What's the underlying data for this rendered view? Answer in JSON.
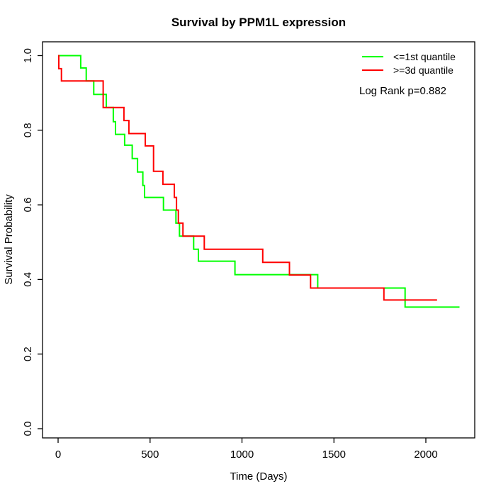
{
  "chart_data": {
    "type": "line",
    "step": true,
    "title": "Survival by PPM1L expression",
    "xlabel": "Time (Days)",
    "ylabel": "Survival Probability",
    "xlim": [
      0,
      2270
    ],
    "ylim": [
      0.0,
      1.0
    ],
    "grid": false,
    "legend_position": "top-right",
    "annotation": "Log Rank p=0.882",
    "xticks": [
      {
        "value": 0,
        "label": "0"
      },
      {
        "value": 500,
        "label": "500"
      },
      {
        "value": 1000,
        "label": "1000"
      },
      {
        "value": 1500,
        "label": "1500"
      },
      {
        "value": 2000,
        "label": "2000"
      }
    ],
    "yticks": [
      {
        "value": 0.0,
        "label": "0.0"
      },
      {
        "value": 0.2,
        "label": "0.2"
      },
      {
        "value": 0.4,
        "label": "0.4"
      },
      {
        "value": 0.6,
        "label": "0.6"
      },
      {
        "value": 0.8,
        "label": "0.8"
      },
      {
        "value": 1.0,
        "label": "1.0"
      }
    ],
    "series": [
      {
        "name": "<=1st quantile",
        "color": "#00ff00",
        "points": [
          [
            0,
            1.0
          ],
          [
            123,
            0.967
          ],
          [
            153,
            0.932
          ],
          [
            194,
            0.896
          ],
          [
            262,
            0.861
          ],
          [
            300,
            0.823
          ],
          [
            312,
            0.789
          ],
          [
            362,
            0.76
          ],
          [
            403,
            0.724
          ],
          [
            432,
            0.688
          ],
          [
            461,
            0.652
          ],
          [
            470,
            0.62
          ],
          [
            573,
            0.586
          ],
          [
            641,
            0.551
          ],
          [
            660,
            0.516
          ],
          [
            737,
            0.481
          ],
          [
            763,
            0.449
          ],
          [
            962,
            0.413
          ],
          [
            1412,
            0.377
          ],
          [
            1887,
            0.326
          ],
          [
            2183,
            0.326
          ]
        ]
      },
      {
        "name": ">=3d quantile",
        "color": "#ff0000",
        "points": [
          [
            0,
            1.0
          ],
          [
            4,
            0.965
          ],
          [
            18,
            0.932
          ],
          [
            245,
            0.861
          ],
          [
            358,
            0.826
          ],
          [
            385,
            0.791
          ],
          [
            474,
            0.758
          ],
          [
            519,
            0.69
          ],
          [
            570,
            0.655
          ],
          [
            632,
            0.62
          ],
          [
            644,
            0.586
          ],
          [
            654,
            0.551
          ],
          [
            679,
            0.516
          ],
          [
            795,
            0.481
          ],
          [
            1113,
            0.446
          ],
          [
            1258,
            0.412
          ],
          [
            1373,
            0.377
          ],
          [
            1772,
            0.345
          ],
          [
            2061,
            0.345
          ]
        ]
      }
    ]
  }
}
